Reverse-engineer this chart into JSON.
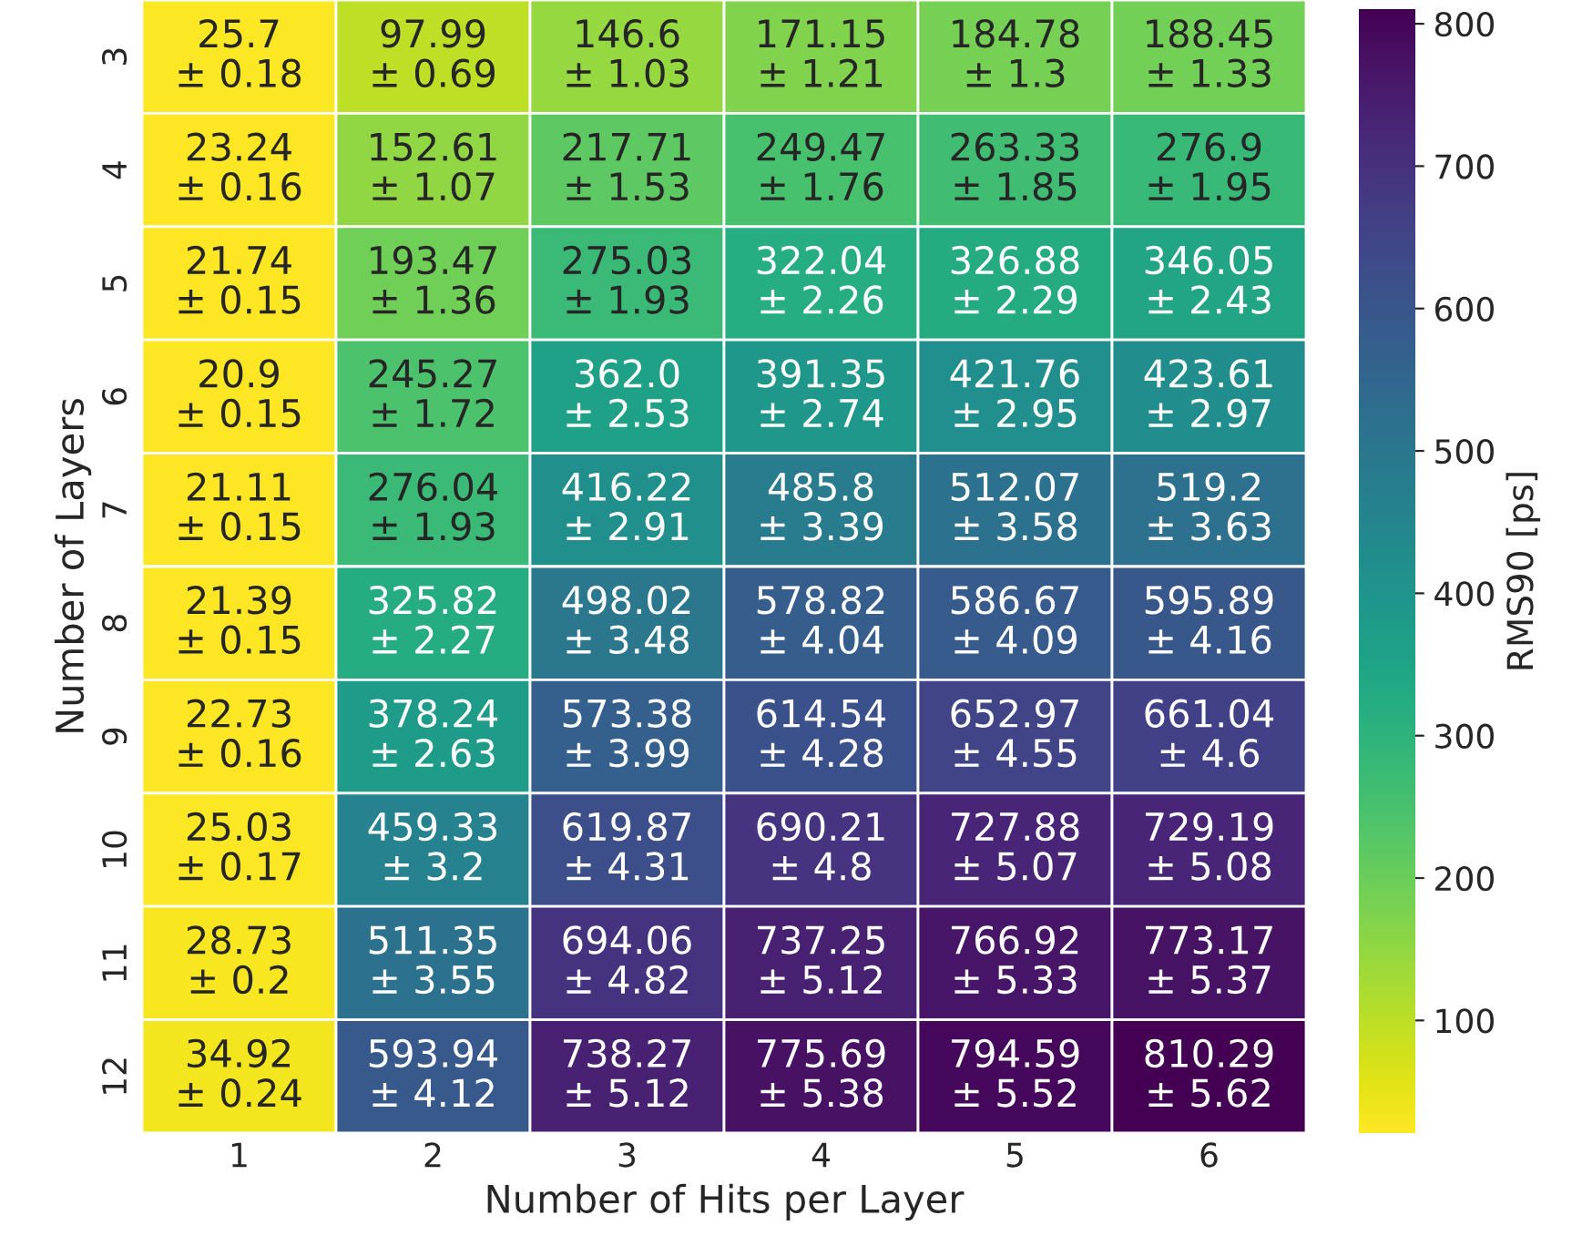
{
  "chart_data": {
    "type": "heatmap",
    "xlabel": "Number of Hits per Layer",
    "ylabel": "Number of Layers",
    "clabel": "RMS90 [ps]",
    "categories": [
      "1",
      "2",
      "3",
      "4",
      "5",
      "6"
    ],
    "y_categories": [
      "3",
      "4",
      "5",
      "6",
      "7",
      "8",
      "9",
      "10",
      "11",
      "12"
    ],
    "cells": [
      [
        25.7,
        97.99,
        146.6,
        171.15,
        184.78,
        188.45
      ],
      [
        23.24,
        152.61,
        217.71,
        249.47,
        263.33,
        276.9
      ],
      [
        21.74,
        193.47,
        275.03,
        322.04,
        326.88,
        346.05
      ],
      [
        20.9,
        245.27,
        362.0,
        391.35,
        421.76,
        423.61
      ],
      [
        21.11,
        276.04,
        416.22,
        485.8,
        512.07,
        519.2
      ],
      [
        21.39,
        325.82,
        498.02,
        578.82,
        586.67,
        595.89
      ],
      [
        22.73,
        378.24,
        573.38,
        614.54,
        652.97,
        661.04
      ],
      [
        25.03,
        459.33,
        619.87,
        690.21,
        727.88,
        729.19
      ],
      [
        28.73,
        511.35,
        694.06,
        737.25,
        766.92,
        773.17
      ],
      [
        34.92,
        593.94,
        738.27,
        775.69,
        794.59,
        810.29
      ]
    ],
    "cell_labels": [
      [
        "25.7\n± 0.18",
        "97.99\n± 0.69",
        "146.6\n± 1.03",
        "171.15\n± 1.21",
        "184.78\n± 1.3",
        "188.45\n± 1.33"
      ],
      [
        "23.24\n± 0.16",
        "152.61\n± 1.07",
        "217.71\n± 1.53",
        "249.47\n± 1.76",
        "263.33\n± 1.85",
        "276.9\n± 1.95"
      ],
      [
        "21.74\n± 0.15",
        "193.47\n± 1.36",
        "275.03\n± 1.93",
        "322.04\n± 2.26",
        "326.88\n± 2.29",
        "346.05\n± 2.43"
      ],
      [
        "20.9\n± 0.15",
        "245.27\n± 1.72",
        "362.0\n± 2.53",
        "391.35\n± 2.74",
        "421.76\n± 2.95",
        "423.61\n± 2.97"
      ],
      [
        "21.11\n± 0.15",
        "276.04\n± 1.93",
        "416.22\n± 2.91",
        "485.8\n± 3.39",
        "512.07\n± 3.58",
        "519.2\n± 3.63"
      ],
      [
        "21.39\n± 0.15",
        "325.82\n± 2.27",
        "498.02\n± 3.48",
        "578.82\n± 4.04",
        "586.67\n± 4.09",
        "595.89\n± 4.16"
      ],
      [
        "22.73\n± 0.16",
        "378.24\n± 2.63",
        "573.38\n± 3.99",
        "614.54\n± 4.28",
        "652.97\n± 4.55",
        "661.04\n± 4.6"
      ],
      [
        "25.03\n± 0.17",
        "459.33\n± 3.2",
        "619.87\n± 4.31",
        "690.21\n± 4.8",
        "727.88\n± 5.07",
        "729.19\n± 5.08"
      ],
      [
        "28.73\n± 0.2",
        "511.35\n± 3.55",
        "694.06\n± 4.82",
        "737.25\n± 5.12",
        "766.92\n± 5.33",
        "773.17\n± 5.37"
      ],
      [
        "34.92\n± 0.24",
        "593.94\n± 4.12",
        "738.27\n± 5.12",
        "775.69\n± 5.38",
        "794.59\n± 5.52",
        "810.29\n± 5.62"
      ]
    ],
    "clim": [
      20.9,
      810.29
    ],
    "cticks": [
      100,
      200,
      300,
      400,
      500,
      600,
      700,
      800
    ]
  }
}
